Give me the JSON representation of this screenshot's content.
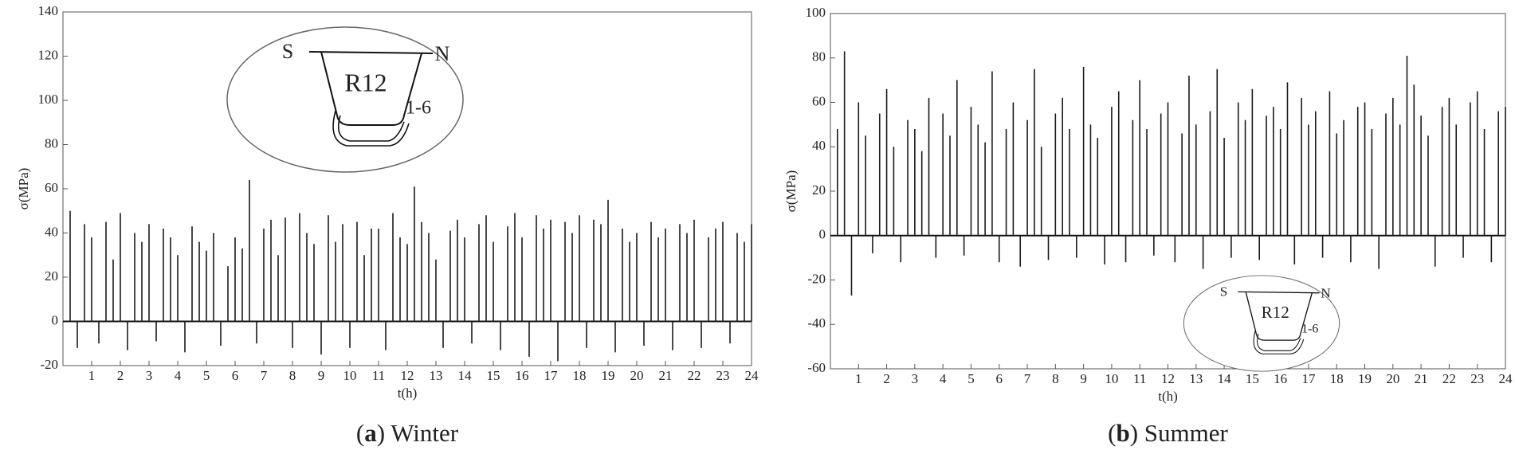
{
  "chart_data": [
    {
      "type": "stem",
      "y_label": "σ(MPa)",
      "x_label": "t(h)",
      "caption": [
        "(",
        "a",
        ") Winter"
      ],
      "annotations": [
        "S",
        "N",
        "R12",
        "1-6"
      ],
      "xlim": [
        0,
        24
      ],
      "xticks": [
        1,
        2,
        3,
        4,
        5,
        6,
        7,
        8,
        9,
        10,
        11,
        12,
        13,
        14,
        15,
        16,
        17,
        18,
        19,
        20,
        21,
        22,
        23,
        24
      ],
      "ylim": [
        -20,
        140
      ],
      "yticks": [
        -20,
        0,
        20,
        40,
        60,
        80,
        100,
        120,
        140
      ],
      "series": [
        {
          "name": "R12 1-6",
          "color": "#1a1a1a",
          "x": [
            0,
            0.25,
            0.5,
            0.75,
            1,
            1.25,
            1.5,
            1.75,
            2,
            2.25,
            2.5,
            2.75,
            3,
            3.25,
            3.5,
            3.75,
            4,
            4.25,
            4.5,
            4.75,
            5,
            5.25,
            5.5,
            5.75,
            6,
            6.25,
            6.5,
            6.75,
            7,
            7.25,
            7.5,
            7.75,
            8,
            8.25,
            8.5,
            8.75,
            9,
            9.25,
            9.5,
            9.75,
            10,
            10.25,
            10.5,
            10.75,
            11,
            11.25,
            11.5,
            11.75,
            12,
            12.25,
            12.5,
            12.75,
            13,
            13.25,
            13.5,
            13.75,
            14,
            14.25,
            14.5,
            14.75,
            15,
            15.25,
            15.5,
            15.75,
            16,
            16.25,
            16.5,
            16.75,
            17,
            17.25,
            17.5,
            17.75,
            18,
            18.25,
            18.5,
            18.75,
            19,
            19.25,
            19.5,
            19.75,
            20,
            20.25,
            20.5,
            20.75,
            21,
            21.25,
            21.5,
            21.75,
            22,
            22.25,
            22.5,
            22.75,
            23,
            23.25,
            23.5,
            23.75,
            24
          ],
          "values": [
            0,
            50,
            -12,
            44,
            38,
            -10,
            45,
            28,
            49,
            -13,
            40,
            36,
            44,
            -9,
            42,
            38,
            30,
            -14,
            43,
            36,
            32,
            40,
            -11,
            25,
            38,
            33,
            64,
            -10,
            42,
            46,
            30,
            47,
            -12,
            49,
            40,
            35,
            -15,
            48,
            36,
            44,
            -12,
            45,
            30,
            42,
            42,
            -13,
            49,
            38,
            35,
            61,
            45,
            40,
            28,
            -12,
            41,
            46,
            38,
            -10,
            44,
            48,
            36,
            -13,
            43,
            49,
            38,
            -16,
            48,
            42,
            46,
            -18,
            45,
            40,
            48,
            -12,
            46,
            44,
            55,
            -14,
            42,
            36,
            40,
            -11,
            45,
            38,
            42,
            -13,
            44,
            40,
            46,
            -12,
            38,
            42,
            45,
            -10,
            40,
            36,
            44
          ]
        }
      ]
    },
    {
      "type": "stem",
      "y_label": "σ(MPa)",
      "x_label": "t(h)",
      "caption": [
        "(",
        "b",
        ") Summer"
      ],
      "annotations": [
        "S",
        "N",
        "R12",
        "1-6"
      ],
      "xlim": [
        0,
        24
      ],
      "xticks": [
        1,
        2,
        3,
        4,
        5,
        6,
        7,
        8,
        9,
        10,
        11,
        12,
        13,
        14,
        15,
        16,
        17,
        18,
        19,
        20,
        21,
        22,
        23,
        24
      ],
      "ylim": [
        -60,
        100
      ],
      "yticks": [
        -60,
        -40,
        -20,
        0,
        20,
        40,
        60,
        80,
        100
      ],
      "series": [
        {
          "name": "R12 1-6",
          "color": "#1a1a1a",
          "x": [
            0,
            0.25,
            0.5,
            0.75,
            1,
            1.25,
            1.5,
            1.75,
            2,
            2.25,
            2.5,
            2.75,
            3,
            3.25,
            3.5,
            3.75,
            4,
            4.25,
            4.5,
            4.75,
            5,
            5.25,
            5.5,
            5.75,
            6,
            6.25,
            6.5,
            6.75,
            7,
            7.25,
            7.5,
            7.75,
            8,
            8.25,
            8.5,
            8.75,
            9,
            9.25,
            9.5,
            9.75,
            10,
            10.25,
            10.5,
            10.75,
            11,
            11.25,
            11.5,
            11.75,
            12,
            12.25,
            12.5,
            12.75,
            13,
            13.25,
            13.5,
            13.75,
            14,
            14.25,
            14.5,
            14.75,
            15,
            15.25,
            15.5,
            15.75,
            16,
            16.25,
            16.5,
            16.75,
            17,
            17.25,
            17.5,
            17.75,
            18,
            18.25,
            18.5,
            18.75,
            19,
            19.25,
            19.5,
            19.75,
            20,
            20.25,
            20.5,
            20.75,
            21,
            21.25,
            21.5,
            21.75,
            22,
            22.25,
            22.5,
            22.75,
            23,
            23.25,
            23.5,
            23.75,
            24
          ],
          "values": [
            0,
            48,
            83,
            -27,
            60,
            45,
            -8,
            55,
            66,
            40,
            -12,
            52,
            48,
            38,
            62,
            -10,
            55,
            45,
            70,
            -9,
            58,
            50,
            42,
            74,
            -12,
            48,
            60,
            -14,
            52,
            75,
            40,
            -11,
            55,
            62,
            48,
            -10,
            76,
            50,
            44,
            -13,
            58,
            65,
            -12,
            52,
            70,
            48,
            -9,
            55,
            60,
            -12,
            46,
            72,
            50,
            -15,
            56,
            75,
            44,
            -10,
            60,
            52,
            66,
            -11,
            54,
            58,
            48,
            69,
            -13,
            62,
            50,
            56,
            -10,
            65,
            46,
            52,
            -12,
            58,
            60,
            48,
            -15,
            55,
            62,
            50,
            81,
            68,
            54,
            45,
            -14,
            58,
            62,
            50,
            -10,
            60,
            65,
            48,
            -12,
            56,
            58
          ]
        }
      ]
    }
  ]
}
